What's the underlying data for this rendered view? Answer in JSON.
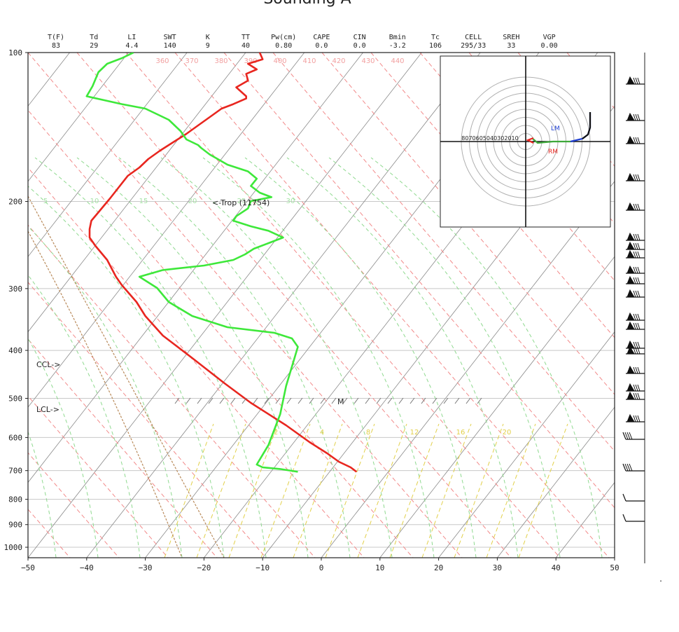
{
  "title": "Sounding A",
  "stats": [
    {
      "label": "T(F)",
      "value": "83"
    },
    {
      "label": "Td",
      "value": "29"
    },
    {
      "label": "LI",
      "value": "4.4"
    },
    {
      "label": "SWT",
      "value": "140"
    },
    {
      "label": "K",
      "value": "9"
    },
    {
      "label": "TT",
      "value": "40"
    },
    {
      "label": "Pw(cm)",
      "value": "0.80"
    },
    {
      "label": "CAPE",
      "value": "0.0"
    },
    {
      "label": "CIN",
      "value": "0.0"
    },
    {
      "label": "Bmin",
      "value": "-3.2"
    },
    {
      "label": "Tc",
      "value": "106"
    },
    {
      "label": "CELL",
      "value": "295/33"
    },
    {
      "label": "SREH",
      "value": "33"
    },
    {
      "label": "VGP",
      "value": "0.00"
    }
  ],
  "chart_data": {
    "type": "line",
    "x_ticks": [
      -50,
      -40,
      -30,
      -20,
      -10,
      0,
      10,
      20,
      30,
      40,
      50
    ],
    "y_ticks": [
      100,
      200,
      300,
      400,
      500,
      600,
      700,
      800,
      900,
      1000
    ],
    "xlim": [
      -50,
      50
    ],
    "ylim": [
      1000,
      100
    ],
    "y_scale": "log",
    "theta_labels": [
      "360",
      "370",
      "380",
      "390",
      "400",
      "410",
      "420",
      "430",
      "440"
    ],
    "theta_e_labels": [
      "5",
      "10",
      "15",
      "20",
      "25",
      "30"
    ],
    "mixing_ratio_labels": [
      "2",
      "4",
      "8",
      "12",
      "16",
      "20"
    ],
    "annotations": [
      {
        "text": "<-Trop (11754)"
      },
      {
        "text": "CCL->"
      },
      {
        "text": "LCL->"
      },
      {
        "text": "M"
      }
    ],
    "series": [
      {
        "key": "temperature",
        "color": "#e8261f",
        "points": [
          [
            -10.5,
            100
          ],
          [
            -10,
            112
          ],
          [
            -12.5,
            120
          ],
          [
            -11,
            130
          ],
          [
            -12.8,
            138
          ],
          [
            -12.5,
            150
          ],
          [
            -14.5,
            162
          ],
          [
            -12.8,
            178
          ],
          [
            -12.8,
            182
          ],
          [
            -15,
            192
          ],
          [
            -17,
            200
          ],
          [
            -19,
            215
          ],
          [
            -21,
            230
          ],
          [
            -23,
            245
          ],
          [
            -24.5,
            255
          ],
          [
            -26,
            265
          ],
          [
            -27.5,
            275
          ],
          [
            -29.5,
            290
          ],
          [
            -31,
            305
          ],
          [
            -33,
            320
          ],
          [
            -34.5,
            340
          ],
          [
            -36,
            360
          ],
          [
            -38,
            385
          ],
          [
            -39.2,
            400
          ],
          [
            -39.5,
            415
          ],
          [
            -39.5,
            430
          ],
          [
            -38.5,
            445
          ],
          [
            -36.5,
            470
          ],
          [
            -35.5,
            490
          ],
          [
            -35,
            500
          ],
          [
            -34,
            515
          ],
          [
            -31.5,
            545
          ],
          [
            -30,
            570
          ],
          [
            -27,
            605
          ],
          [
            -22,
            645
          ],
          [
            -16.5,
            690
          ],
          [
            -12,
            725
          ],
          [
            -6,
            765
          ],
          [
            -2,
            795
          ],
          [
            1,
            815
          ],
          [
            3,
            830
          ],
          [
            5,
            840
          ],
          [
            6,
            848
          ]
        ]
      },
      {
        "key": "dewpoint",
        "color": "#3ee83a",
        "points": [
          [
            -32,
            100
          ],
          [
            -34,
            110
          ],
          [
            -36.5,
            120
          ],
          [
            -38,
            135
          ],
          [
            -39,
            160
          ],
          [
            -40,
            178
          ],
          [
            -37,
            185
          ],
          [
            -34,
            192
          ],
          [
            -30,
            200
          ],
          [
            -28,
            210
          ],
          [
            -26,
            220
          ],
          [
            -25,
            230
          ],
          [
            -24,
            240
          ],
          [
            -23,
            255
          ],
          [
            -21,
            265
          ],
          [
            -20.5,
            270
          ],
          [
            -19,
            282
          ],
          [
            -18,
            288
          ],
          [
            -16,
            300
          ],
          [
            -12.5,
            312
          ],
          [
            -11,
            325
          ],
          [
            -12,
            338
          ],
          [
            -10.5,
            350
          ],
          [
            -8.5,
            358
          ],
          [
            -12,
            365
          ],
          [
            -12.5,
            378
          ],
          [
            -14.5,
            392
          ],
          [
            -15,
            400
          ],
          [
            -12,
            410
          ],
          [
            -9,
            418
          ],
          [
            -6.5,
            430
          ],
          [
            -9,
            440
          ],
          [
            -11.5,
            450
          ],
          [
            -13,
            460
          ],
          [
            -15,
            470
          ],
          [
            -20,
            480
          ],
          [
            -27,
            488
          ],
          [
            -31,
            500
          ],
          [
            -28,
            520
          ],
          [
            -26,
            545
          ],
          [
            -22,
            570
          ],
          [
            -16,
            590
          ],
          [
            -8,
            600
          ],
          [
            -5,
            610
          ],
          [
            -4,
            625
          ],
          [
            -5,
            660
          ],
          [
            -6,
            695
          ],
          [
            -7,
            745
          ],
          [
            -9,
            800
          ],
          [
            -11,
            835
          ],
          [
            -10,
            840
          ],
          [
            -7,
            843
          ],
          [
            -4,
            848
          ]
        ]
      }
    ],
    "hodograph": {
      "ring_labels": [
        "80",
        "70",
        "60",
        "50",
        "40",
        "30",
        "20",
        "10"
      ],
      "labels": [
        {
          "text": "LM",
          "color": "#1f3fd1"
        },
        {
          "text": "RM",
          "color": "#e8261f"
        }
      ]
    }
  }
}
